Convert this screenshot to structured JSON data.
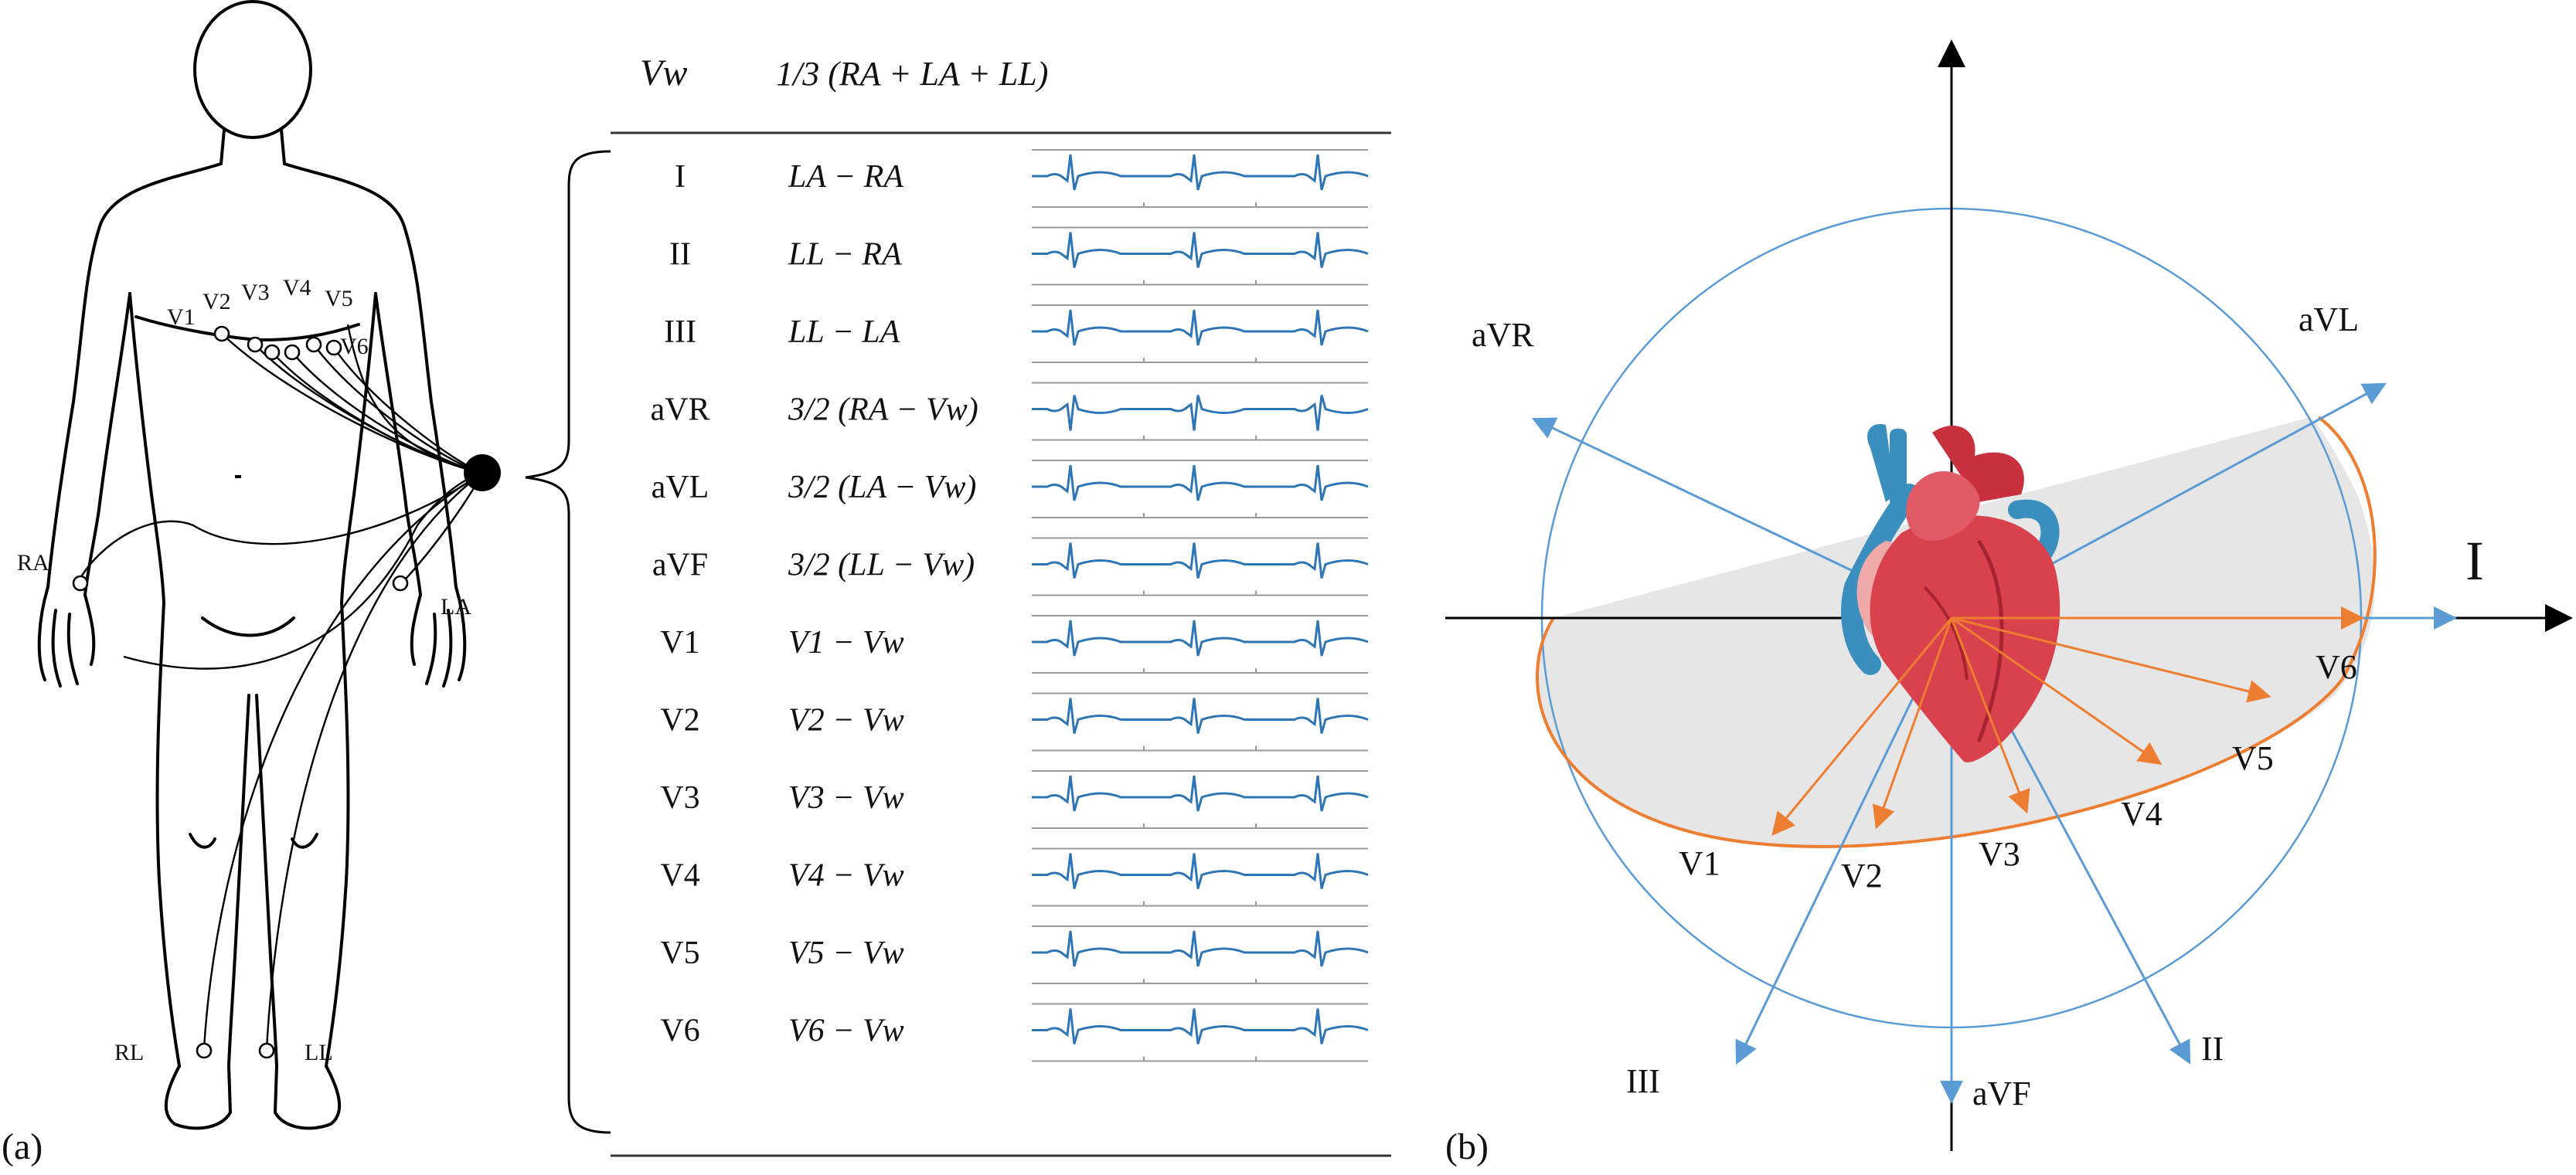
{
  "panel_labels": {
    "a": "(a)",
    "b": "(b)"
  },
  "electrodes": {
    "precordial": [
      "V1",
      "V2",
      "V3",
      "V4",
      "V5",
      "V6"
    ],
    "limb": [
      "RA",
      "LA",
      "RL",
      "LL"
    ]
  },
  "table": {
    "header": {
      "lead": "Vw",
      "formula": "1/3 (RA + LA + LL)"
    },
    "rows": [
      {
        "lead": "I",
        "formula": "LA − RA"
      },
      {
        "lead": "II",
        "formula": "LL − RA"
      },
      {
        "lead": "III",
        "formula": "LL − LA"
      },
      {
        "lead": "aVR",
        "formula": "3/2 (RA − Vw)"
      },
      {
        "lead": "aVL",
        "formula": "3/2 (LA − Vw)"
      },
      {
        "lead": "aVF",
        "formula": "3/2 (LL − Vw)"
      },
      {
        "lead": "V1",
        "formula": "V1 − Vw"
      },
      {
        "lead": "V2",
        "formula": "V2 − Vw"
      },
      {
        "lead": "V3",
        "formula": "V3 − Vw"
      },
      {
        "lead": "V4",
        "formula": "V4 − Vw"
      },
      {
        "lead": "V5",
        "formula": "V5 − Vw"
      },
      {
        "lead": "V6",
        "formula": "V6 − Vw"
      }
    ]
  },
  "axes_diagram": {
    "limb_leads": [
      "I",
      "II",
      "III",
      "aVR",
      "aVL",
      "aVF"
    ],
    "precordial_leads": [
      "V1",
      "V2",
      "V3",
      "V4",
      "V5",
      "V6"
    ]
  },
  "colors": {
    "limb_axis": "#5b9bd5",
    "precordial_axis": "#ed7d31",
    "trace": "#2e75b6",
    "shade": "#e6e6e6"
  }
}
